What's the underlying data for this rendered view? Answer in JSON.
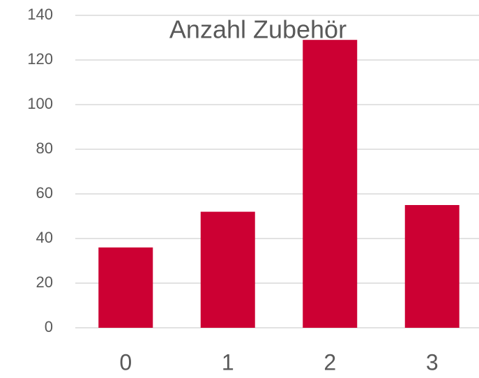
{
  "chart_data": {
    "type": "bar",
    "title": "Anzahl Zubehör",
    "categories": [
      "0",
      "1",
      "2",
      "3"
    ],
    "values": [
      36,
      52,
      129,
      55
    ],
    "color": "#cc0033",
    "ylim": [
      0,
      140
    ],
    "yticks": [
      0,
      20,
      40,
      60,
      80,
      100,
      120,
      140
    ],
    "grid": true
  }
}
